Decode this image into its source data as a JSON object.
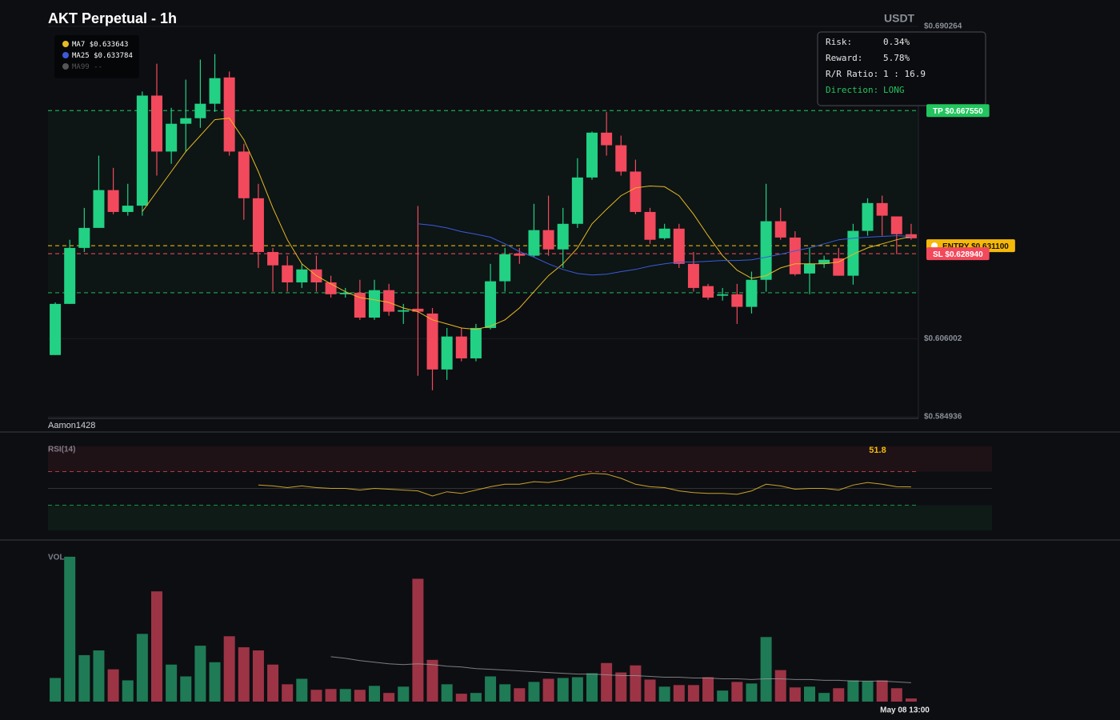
{
  "chart_data": [
    {
      "type": "candlestick",
      "title": "AKT Perpetual - 1h",
      "unit": "USDT",
      "watermark": "Aamon1428",
      "ylim": [
        0.584936,
        0.690264
      ],
      "yticks": [
        {
          "value": 0.690264,
          "label": "$0.690264"
        },
        {
          "value": 0.606002,
          "label": "$0.606002"
        },
        {
          "value": 0.584936,
          "label": "$0.584936"
        }
      ],
      "up_color": "#22d184",
      "down_color": "#f2495c",
      "open": [
        0.6016,
        0.6154,
        0.6305,
        0.6359,
        0.6461,
        0.6402,
        0.6419,
        0.6716,
        0.6565,
        0.664,
        0.6655,
        0.6694,
        0.6765,
        0.6565,
        0.6439,
        0.6294,
        0.6258,
        0.6212,
        0.6247,
        0.6212,
        0.618,
        0.6184,
        0.6117,
        0.6191,
        0.6133,
        0.6141,
        0.6128,
        0.5977,
        0.6066,
        0.6007,
        0.6089,
        0.6215,
        0.629,
        0.6284,
        0.6353,
        0.6301,
        0.637,
        0.6495,
        0.6616,
        0.6582,
        0.6511,
        0.6402,
        0.6331,
        0.6357,
        0.6262,
        0.6202,
        0.6176,
        0.618,
        0.6146,
        0.6219,
        0.6377,
        0.6333,
        0.6236,
        0.6262,
        0.6277,
        0.623,
        0.6351,
        0.6426,
        0.639,
        0.6342
      ],
      "high": [
        0.6158,
        0.6327,
        0.6413,
        0.6554,
        0.6521,
        0.6478,
        0.6727,
        0.6802,
        0.6683,
        0.6759,
        0.6813,
        0.6828,
        0.6781,
        0.6586,
        0.6478,
        0.6305,
        0.6284,
        0.6262,
        0.6284,
        0.623,
        0.6197,
        0.6219,
        0.6219,
        0.6208,
        0.6154,
        0.6418,
        0.6143,
        0.6089,
        0.6089,
        0.61,
        0.6262,
        0.6305,
        0.6305,
        0.6424,
        0.6446,
        0.6413,
        0.6547,
        0.6619,
        0.6672,
        0.6608,
        0.6543,
        0.6413,
        0.637,
        0.637,
        0.6294,
        0.6208,
        0.6197,
        0.6208,
        0.6241,
        0.6478,
        0.6413,
        0.635,
        0.6305,
        0.6284,
        0.6305,
        0.637,
        0.6439,
        0.6446,
        0.639,
        0.637
      ],
      "low": [
        0.6016,
        0.6154,
        0.6294,
        0.6359,
        0.6396,
        0.6392,
        0.6392,
        0.65,
        0.6532,
        0.6565,
        0.6629,
        0.6672,
        0.6554,
        0.6381,
        0.6251,
        0.6187,
        0.6187,
        0.6197,
        0.6187,
        0.6171,
        0.6171,
        0.6111,
        0.6111,
        0.6122,
        0.61,
        0.596,
        0.5921,
        0.5949,
        0.5999,
        0.5999,
        0.6085,
        0.6187,
        0.6262,
        0.6279,
        0.6284,
        0.6251,
        0.6359,
        0.6489,
        0.6554,
        0.65,
        0.6396,
        0.6316,
        0.6327,
        0.6251,
        0.6187,
        0.6165,
        0.6163,
        0.61,
        0.6128,
        0.6187,
        0.6327,
        0.623,
        0.618,
        0.6251,
        0.623,
        0.6206,
        0.6338,
        0.6338,
        0.6288,
        0.6327
      ],
      "close": [
        0.6154,
        0.6305,
        0.6359,
        0.6461,
        0.6402,
        0.6419,
        0.6716,
        0.6565,
        0.664,
        0.6655,
        0.6694,
        0.6763,
        0.6565,
        0.6439,
        0.6294,
        0.6258,
        0.6212,
        0.6247,
        0.6212,
        0.618,
        0.6184,
        0.6117,
        0.6191,
        0.6133,
        0.6137,
        0.6133,
        0.5977,
        0.6066,
        0.6007,
        0.6089,
        0.6215,
        0.6288,
        0.6284,
        0.6353,
        0.6301,
        0.637,
        0.6495,
        0.6616,
        0.6582,
        0.6511,
        0.6402,
        0.6327,
        0.6357,
        0.6262,
        0.6197,
        0.6171,
        0.618,
        0.6146,
        0.6219,
        0.6377,
        0.6333,
        0.6234,
        0.6262,
        0.6273,
        0.623,
        0.6351,
        0.6426,
        0.6392,
        0.6342,
        0.6331
      ],
      "series": [
        {
          "name": "MA7",
          "legend_value": "$0.633643",
          "color": "#e8b923",
          "values": [
            null,
            null,
            null,
            null,
            null,
            null,
            0.6403,
            0.6457,
            0.6511,
            0.6565,
            0.6608,
            0.6651,
            0.6655,
            0.6597,
            0.6511,
            0.6413,
            0.6327,
            0.6262,
            0.623,
            0.6208,
            0.6187,
            0.6171,
            0.6165,
            0.6158,
            0.6143,
            0.6133,
            0.6111,
            0.61,
            0.6089,
            0.6085,
            0.6094,
            0.6111,
            0.6143,
            0.6187,
            0.623,
            0.6262,
            0.6305,
            0.637,
            0.6409,
            0.6446,
            0.6467,
            0.6472,
            0.647,
            0.6446,
            0.6396,
            0.6338,
            0.6284,
            0.6245,
            0.6223,
            0.623,
            0.6251,
            0.6262,
            0.6262,
            0.6262,
            0.6267,
            0.6288,
            0.6305,
            0.6316,
            0.6327,
            0.6336
          ]
        },
        {
          "name": "MA25",
          "legend_value": "$0.633784",
          "color": "#3b5bdb",
          "values": [
            null,
            null,
            null,
            null,
            null,
            null,
            null,
            null,
            null,
            null,
            null,
            null,
            null,
            null,
            null,
            null,
            null,
            null,
            null,
            null,
            null,
            null,
            null,
            null,
            null,
            0.637,
            0.6366,
            0.6359,
            0.6349,
            0.6342,
            0.6334,
            0.6316,
            0.6295,
            0.628,
            0.6262,
            0.6247,
            0.6236,
            0.6232,
            0.6234,
            0.6241,
            0.6247,
            0.6256,
            0.6262,
            0.6267,
            0.6267,
            0.6269,
            0.6271,
            0.6271,
            0.6273,
            0.628,
            0.6288,
            0.6297,
            0.6305,
            0.6316,
            0.6327,
            0.6331,
            0.6334,
            0.6336,
            0.6338,
            0.6336
          ]
        },
        {
          "name": "MA99",
          "legend_value": "--",
          "color": "#555555"
        }
      ],
      "levels": [
        {
          "value": 0.66755,
          "label": "TP $0.667550",
          "color": "#22c55e"
        },
        {
          "value": 0.6311,
          "label": "ENTRY $0.631100",
          "color": "#f5b90b"
        },
        {
          "value": 0.62894,
          "label": "SL $0.628940",
          "color": "#f2495c"
        },
        {
          "value": 0.6184,
          "color": "#22c55e"
        }
      ]
    },
    {
      "type": "line",
      "title": "RSI(14)",
      "ylim": [
        0,
        100
      ],
      "color": "#c9a227",
      "levels": [
        {
          "value": 70,
          "color": "#f2495c"
        },
        {
          "value": 50,
          "color": "#444444"
        },
        {
          "value": 30,
          "color": "#22c55e"
        }
      ],
      "values": [
        null,
        null,
        null,
        null,
        null,
        null,
        null,
        null,
        null,
        null,
        null,
        null,
        null,
        null,
        54,
        53,
        51,
        53,
        51,
        50,
        50,
        48,
        50,
        49,
        48,
        47,
        41,
        46,
        44,
        48,
        52,
        55,
        55,
        58,
        57,
        60,
        65,
        68,
        67,
        62,
        55,
        52,
        51,
        47,
        45,
        44,
        44,
        43,
        47,
        55,
        53,
        49,
        50,
        50,
        48,
        54,
        57,
        55,
        52,
        51.8
      ],
      "value_labels": [
        null,
        null,
        null,
        null,
        null,
        null,
        null,
        null,
        null,
        null,
        null,
        null,
        null,
        null,
        null,
        null,
        null,
        null,
        null,
        null,
        null,
        null,
        null,
        null,
        null,
        null,
        null,
        null,
        null,
        null,
        null,
        null,
        null,
        null,
        null,
        null,
        null,
        null,
        null,
        null,
        null,
        null,
        null,
        null,
        null,
        null,
        null,
        null,
        null,
        null,
        null,
        null,
        null,
        null,
        null,
        null,
        null,
        null,
        null,
        "51.8"
      ]
    },
    {
      "type": "bar",
      "title": "VOL",
      "ylim": [
        0,
        190
      ],
      "up_color": "#1e7b55",
      "down_color": "#9c3445",
      "values": [
        30,
        184,
        59,
        65,
        41,
        27,
        86,
        140,
        47,
        32,
        71,
        50,
        83,
        69,
        65,
        47,
        22,
        29,
        15,
        16,
        16,
        15,
        20,
        11,
        19,
        156,
        53,
        22,
        10,
        11,
        32,
        22,
        17,
        25,
        29,
        30,
        31,
        36,
        49,
        37,
        46,
        28,
        19,
        21,
        21,
        31,
        14,
        25,
        23,
        82,
        40,
        18,
        19,
        11,
        17,
        27,
        26,
        27,
        17,
        4
      ],
      "ma": {
        "color": "#9a9a9a",
        "values": [
          null,
          null,
          null,
          null,
          null,
          null,
          null,
          null,
          null,
          null,
          null,
          null,
          null,
          null,
          null,
          null,
          null,
          null,
          null,
          57,
          55,
          52,
          50,
          48,
          47,
          48,
          47,
          45,
          44,
          42,
          41,
          40,
          39,
          38,
          37,
          36,
          35,
          35,
          34,
          33,
          33,
          32,
          31,
          31,
          30,
          30,
          29,
          29,
          28,
          29,
          29,
          28,
          28,
          27,
          27,
          26,
          26,
          26,
          25,
          24
        ]
      },
      "time_label": "May 08 13:00"
    }
  ],
  "risk_panel": {
    "rows": [
      {
        "label": "Risk:",
        "value": "0.34%"
      },
      {
        "label": "Reward:",
        "value": "5.78%"
      },
      {
        "label": "R/R Ratio:",
        "value": "1 : 16.9"
      },
      {
        "label": "Direction:",
        "value": "LONG"
      }
    ]
  }
}
